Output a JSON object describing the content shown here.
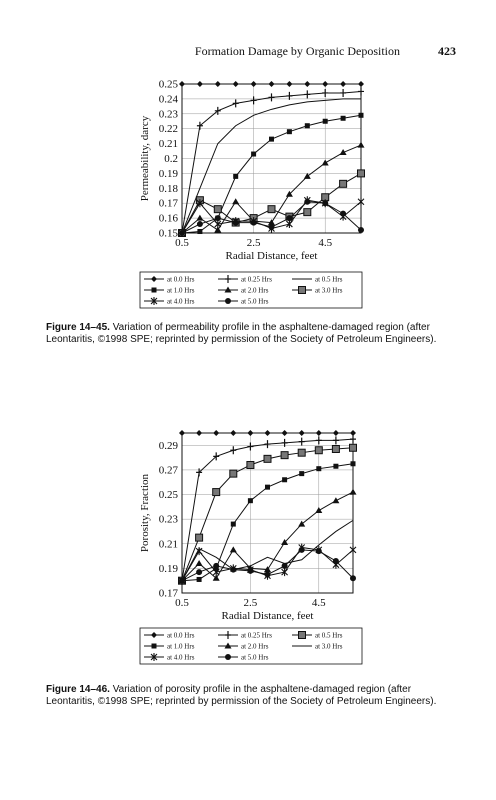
{
  "page": {
    "running_head": "Formation Damage by Organic Deposition",
    "page_number": "423"
  },
  "figure1": {
    "caption_label": "Figure 14–45.",
    "caption_text": "Variation of permeability profile in the asphaltene-damaged region (after Leontaritis, ©1998 SPE; reprinted by permission of the Society of Petroleum Engineers)."
  },
  "figure2": {
    "caption_label": "Figure 14–46.",
    "caption_text": "Variation of porosity profile in the asphaltene-damaged region (after Leontaritis, ©1998 SPE; reprinted by permission of the Society of Petroleum Engineers)."
  },
  "chart_data": [
    {
      "type": "line",
      "xlabel": "Radial Distance, feet",
      "ylabel": "Permeability, darcy",
      "xlim": [
        0.5,
        5.5
      ],
      "ylim": [
        0.15,
        0.25
      ],
      "xticks": [
        "0.5",
        "2.5",
        "4.5"
      ],
      "xtick_values": [
        0.5,
        2.5,
        4.5
      ],
      "yticks": [
        "0.15",
        "0.16",
        "0.17",
        "0.18",
        "0.19",
        "0.2",
        "0.21",
        "0.22",
        "0.23",
        "0.24",
        "0.25"
      ],
      "ytick_values": [
        0.15,
        0.16,
        0.17,
        0.18,
        0.19,
        0.2,
        0.21,
        0.22,
        0.23,
        0.24,
        0.25
      ],
      "grid": true,
      "legend_position": "bottom",
      "x": [
        0.5,
        1.0,
        1.5,
        2.0,
        2.5,
        3.0,
        3.5,
        4.0,
        4.5,
        5.0,
        5.5
      ],
      "series": [
        {
          "name": "at 0.0 Hrs",
          "marker": "diamond",
          "values": [
            0.25,
            0.25,
            0.25,
            0.25,
            0.25,
            0.25,
            0.25,
            0.25,
            0.25,
            0.25,
            0.25
          ]
        },
        {
          "name": "at 0.25 Hrs",
          "marker": "plus",
          "values": [
            0.15,
            0.222,
            0.232,
            0.237,
            0.239,
            0.241,
            0.242,
            0.243,
            0.244,
            0.244,
            0.245
          ]
        },
        {
          "name": "at 0.5 Hrs",
          "marker": "none",
          "values": [
            0.15,
            0.18,
            0.21,
            0.222,
            0.229,
            0.233,
            0.236,
            0.238,
            0.239,
            0.24,
            0.24
          ]
        },
        {
          "name": "at 1.0 Hrs",
          "marker": "square",
          "values": [
            0.15,
            0.151,
            0.16,
            0.188,
            0.203,
            0.213,
            0.218,
            0.222,
            0.225,
            0.227,
            0.229
          ]
        },
        {
          "name": "at 2.0 Hrs",
          "marker": "triangle",
          "values": [
            0.15,
            0.16,
            0.152,
            0.171,
            0.158,
            0.157,
            0.176,
            0.188,
            0.197,
            0.204,
            0.209
          ]
        },
        {
          "name": "at 3.0 Hrs",
          "marker": "bigsquare",
          "values": [
            0.15,
            0.172,
            0.166,
            0.157,
            0.16,
            0.166,
            0.161,
            0.164,
            0.174,
            0.183,
            0.19
          ]
        },
        {
          "name": "at 4.0 Hrs",
          "marker": "asterisk",
          "values": [
            0.15,
            0.17,
            0.156,
            0.158,
            0.158,
            0.153,
            0.156,
            0.172,
            0.17,
            0.161,
            0.171
          ]
        },
        {
          "name": "at 5.0 Hrs",
          "marker": "circle",
          "values": [
            0.15,
            0.156,
            0.16,
            0.157,
            0.157,
            0.154,
            0.16,
            0.171,
            0.17,
            0.163,
            0.152
          ]
        }
      ]
    },
    {
      "type": "line",
      "xlabel": "Radial Distance, feet",
      "ylabel": "Porosity, Fraction",
      "xlim": [
        0.5,
        5.5
      ],
      "ylim": [
        0.17,
        0.3
      ],
      "xticks": [
        "0.5",
        "2.5",
        "4.5"
      ],
      "xtick_values": [
        0.5,
        2.5,
        4.5
      ],
      "yticks": [
        "0.17",
        "0.19",
        "0.21",
        "0.23",
        "0.25",
        "0.27",
        "0.29"
      ],
      "ytick_values": [
        0.17,
        0.19,
        0.21,
        0.23,
        0.25,
        0.27,
        0.29
      ],
      "grid": true,
      "legend_position": "bottom",
      "x": [
        0.5,
        1.0,
        1.5,
        2.0,
        2.5,
        3.0,
        3.5,
        4.0,
        4.5,
        5.0,
        5.5
      ],
      "series": [
        {
          "name": "at 0.0 Hrs",
          "marker": "diamond",
          "values": [
            0.3,
            0.3,
            0.3,
            0.3,
            0.3,
            0.3,
            0.3,
            0.3,
            0.3,
            0.3,
            0.3
          ]
        },
        {
          "name": "at 0.25 Hrs",
          "marker": "plus",
          "values": [
            0.18,
            0.268,
            0.281,
            0.286,
            0.289,
            0.291,
            0.292,
            0.293,
            0.294,
            0.294,
            0.295
          ]
        },
        {
          "name": "at 0.5 Hrs",
          "marker": "bigsquare",
          "values": [
            0.18,
            0.215,
            0.252,
            0.267,
            0.274,
            0.279,
            0.282,
            0.284,
            0.286,
            0.287,
            0.288
          ]
        },
        {
          "name": "at 1.0 Hrs",
          "marker": "square",
          "values": [
            0.18,
            0.181,
            0.19,
            0.226,
            0.245,
            0.256,
            0.262,
            0.267,
            0.271,
            0.273,
            0.275
          ]
        },
        {
          "name": "at 2.0 Hrs",
          "marker": "triangle",
          "values": [
            0.18,
            0.194,
            0.182,
            0.205,
            0.19,
            0.189,
            0.211,
            0.226,
            0.237,
            0.245,
            0.252
          ]
        },
        {
          "name": "at 3.0 Hrs",
          "marker": "none",
          "values": [
            0.18,
            0.206,
            0.199,
            0.189,
            0.192,
            0.199,
            0.194,
            0.197,
            0.209,
            0.22,
            0.229
          ]
        },
        {
          "name": "at 4.0 Hrs",
          "marker": "asterisk",
          "values": [
            0.18,
            0.204,
            0.187,
            0.19,
            0.189,
            0.184,
            0.187,
            0.207,
            0.205,
            0.193,
            0.205
          ]
        },
        {
          "name": "at 5.0 Hrs",
          "marker": "circle",
          "values": [
            0.18,
            0.187,
            0.192,
            0.189,
            0.188,
            0.185,
            0.192,
            0.205,
            0.204,
            0.196,
            0.182
          ]
        }
      ]
    }
  ]
}
